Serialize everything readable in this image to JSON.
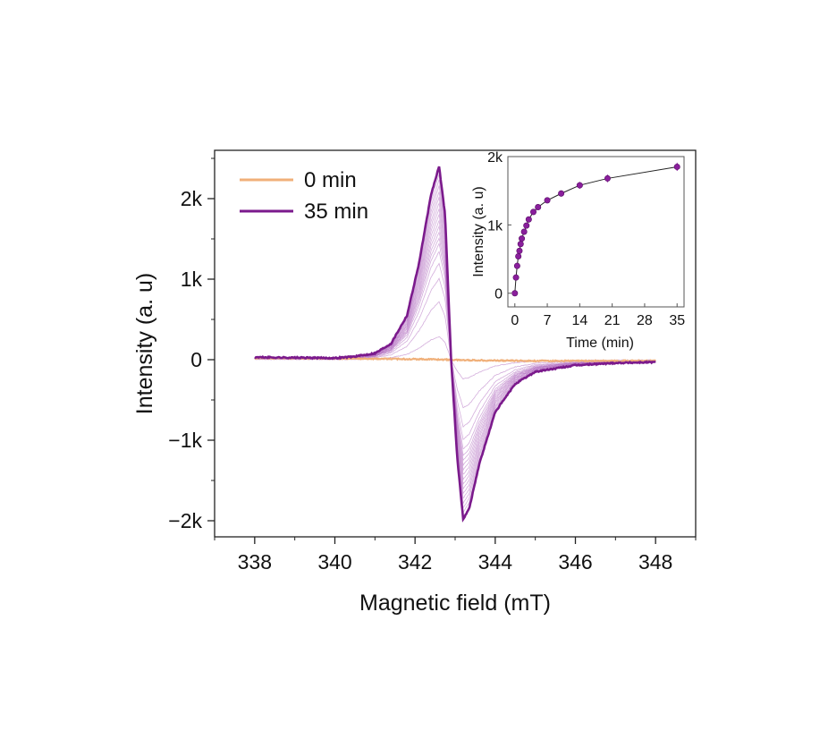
{
  "chart_data": [
    {
      "type": "line",
      "xlabel": "Magnetic field (mT)",
      "ylabel": "Intensity (a. u)",
      "xlim": [
        337,
        349
      ],
      "ylim": [
        -2200,
        2600
      ],
      "xticks": [
        338,
        340,
        342,
        344,
        346,
        348
      ],
      "xtick_labels": [
        "338",
        "340",
        "342",
        "344",
        "346",
        "348"
      ],
      "yticks": [
        -2000,
        -1000,
        0,
        1000,
        2000
      ],
      "ytick_labels": [
        "−2k",
        "−1k",
        "0",
        "1k",
        "2k"
      ],
      "grid": false,
      "legend": {
        "position": "top-left",
        "entries": [
          {
            "label": "0 min",
            "color": "#f0b07a"
          },
          {
            "label": "35 min",
            "color": "#7b1a8c"
          }
        ]
      },
      "series": [
        {
          "name": "0 min",
          "color": "#f0b07a",
          "x": [
            338,
            340,
            341,
            341.8,
            342.4,
            342.8,
            343.2,
            344,
            345,
            346,
            348
          ],
          "y": [
            20,
            15,
            12,
            8,
            5,
            0,
            -5,
            -10,
            -15,
            -15,
            -15
          ]
        },
        {
          "name": "35 min",
          "color": "#7b1a8c",
          "x": [
            338,
            339,
            340,
            340.5,
            341,
            341.4,
            341.8,
            342.1,
            342.4,
            342.6,
            342.75,
            342.9,
            343.05,
            343.2,
            343.35,
            343.6,
            344,
            344.5,
            345,
            346,
            347,
            348
          ],
          "y": [
            30,
            25,
            20,
            40,
            80,
            200,
            550,
            1200,
            2050,
            2400,
            1800,
            0,
            -1200,
            -1980,
            -1850,
            -1300,
            -650,
            -300,
            -150,
            -70,
            -40,
            -30
          ]
        }
      ],
      "intermediate_curves": {
        "color": "#b06cc0",
        "scale_factors": [
          0.12,
          0.3,
          0.42,
          0.5,
          0.56,
          0.6,
          0.63,
          0.66,
          0.69,
          0.72,
          0.75,
          0.78,
          0.81,
          0.84,
          0.87,
          0.9,
          0.93,
          0.96
        ]
      }
    },
    {
      "type": "scatter",
      "xlabel": "Time (min)",
      "ylabel": "Intensity (a. u)",
      "xlim": [
        -1.5,
        36.5
      ],
      "ylim": [
        -200,
        2000
      ],
      "xticks": [
        0,
        7,
        14,
        21,
        28,
        35
      ],
      "xtick_labels": [
        "0",
        "7",
        "14",
        "21",
        "28",
        "35"
      ],
      "yticks": [
        0,
        1000,
        2000
      ],
      "ytick_labels": [
        "0",
        "1k",
        "2k"
      ],
      "color": "#8a1f9c",
      "x": [
        0,
        0.25,
        0.5,
        0.75,
        1,
        1.25,
        1.5,
        2,
        2.5,
        3,
        4,
        5,
        7,
        10,
        14,
        20,
        35
      ],
      "y": [
        0,
        230,
        400,
        540,
        620,
        720,
        800,
        900,
        990,
        1080,
        1190,
        1260,
        1360,
        1460,
        1580,
        1680,
        1850
      ],
      "error": [
        25,
        25,
        25,
        30,
        30,
        30,
        30,
        35,
        35,
        35,
        40,
        40,
        40,
        45,
        50,
        55,
        60
      ]
    }
  ]
}
